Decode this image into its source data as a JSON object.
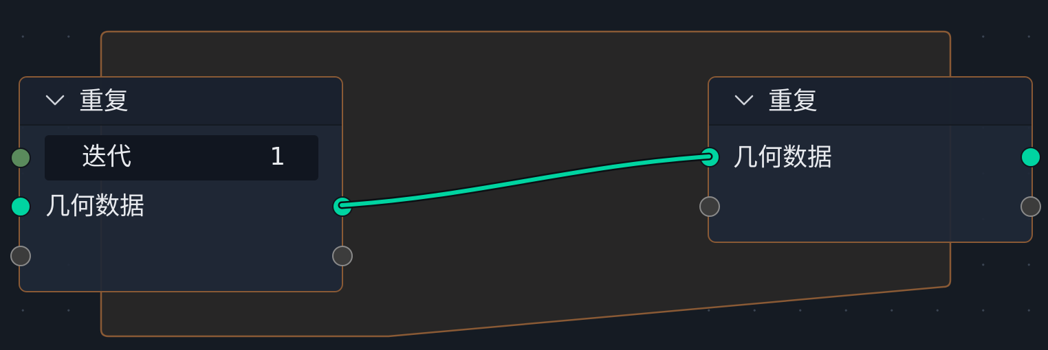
{
  "app": {
    "view": "node-editor",
    "theme": {
      "background": "#151b23",
      "frame_border": "#8a5a35",
      "frame_fill": "#272626",
      "node_body": "#1f2837",
      "geometry_socket": "#00d4a1",
      "integer_socket": "#5a8a5c",
      "link_color": "#00d4a1"
    }
  },
  "nodes": {
    "input": {
      "title": "重复",
      "collapse_icon": "chevron-down-icon",
      "iterations": {
        "label": "迭代",
        "value": "1"
      },
      "geometry_label": "几何数据"
    },
    "output": {
      "title": "重复",
      "collapse_icon": "chevron-down-icon",
      "geometry_label": "几何数据"
    }
  },
  "links": [
    {
      "from": "input.geometry_out",
      "to": "output.geometry_in",
      "type": "geometry"
    }
  ]
}
